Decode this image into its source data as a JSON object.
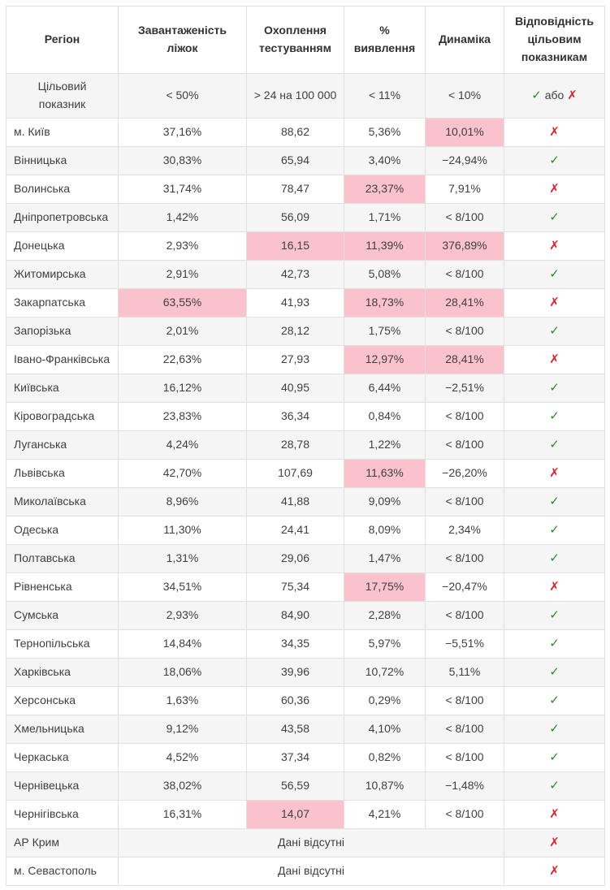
{
  "chart_data": {
    "type": "table",
    "columns": [
      "Регіон",
      "Завантаженість ліжок",
      "Охоплення тестуванням",
      "% виявлення",
      "Динаміка",
      "Відповідність цільовим показникам"
    ],
    "target_row": {
      "label": "Цільовий показник",
      "beds": "< 50%",
      "testing": "> 24 на 100 000",
      "detection": "< 11%",
      "dynamics": "< 10%"
    },
    "no_data_label": "Дані відсутні",
    "rows": [
      {
        "region": "м. Київ",
        "beds": "37,16%",
        "testing": "88,62",
        "detection": "5,36%",
        "dynamics": "10,01%",
        "highlight": [
          "dynamics"
        ],
        "compliance": "fail"
      },
      {
        "region": "Вінницька",
        "beds": "30,83%",
        "testing": "65,94",
        "detection": "3,40%",
        "dynamics": "−24,94%",
        "highlight": [],
        "compliance": "pass"
      },
      {
        "region": "Волинська",
        "beds": "31,74%",
        "testing": "78,47",
        "detection": "23,37%",
        "dynamics": "7,91%",
        "highlight": [
          "detection"
        ],
        "compliance": "fail"
      },
      {
        "region": "Дніпропетровська",
        "beds": "1,42%",
        "testing": "56,09",
        "detection": "1,71%",
        "dynamics": "< 8/100",
        "highlight": [],
        "compliance": "pass"
      },
      {
        "region": "Донецька",
        "beds": "2,93%",
        "testing": "16,15",
        "detection": "11,39%",
        "dynamics": "376,89%",
        "highlight": [
          "testing",
          "detection",
          "dynamics"
        ],
        "compliance": "fail"
      },
      {
        "region": "Житомирська",
        "beds": "2,91%",
        "testing": "42,73",
        "detection": "5,08%",
        "dynamics": "< 8/100",
        "highlight": [],
        "compliance": "pass"
      },
      {
        "region": "Закарпатська",
        "beds": "63,55%",
        "testing": "41,93",
        "detection": "18,73%",
        "dynamics": "28,41%",
        "highlight": [
          "beds",
          "detection",
          "dynamics"
        ],
        "compliance": "fail"
      },
      {
        "region": "Запорізька",
        "beds": "2,01%",
        "testing": "28,12",
        "detection": "1,75%",
        "dynamics": "< 8/100",
        "highlight": [],
        "compliance": "pass"
      },
      {
        "region": "Івано-Франківська",
        "beds": "22,63%",
        "testing": "27,93",
        "detection": "12,97%",
        "dynamics": "28,41%",
        "highlight": [
          "detection",
          "dynamics"
        ],
        "compliance": "fail"
      },
      {
        "region": "Київська",
        "beds": "16,12%",
        "testing": "40,95",
        "detection": "6,44%",
        "dynamics": "−2,51%",
        "highlight": [],
        "compliance": "pass"
      },
      {
        "region": "Кіровоградська",
        "beds": "23,83%",
        "testing": "36,34",
        "detection": "0,84%",
        "dynamics": "< 8/100",
        "highlight": [],
        "compliance": "pass"
      },
      {
        "region": "Луганська",
        "beds": "4,24%",
        "testing": "28,78",
        "detection": "1,22%",
        "dynamics": "< 8/100",
        "highlight": [],
        "compliance": "pass"
      },
      {
        "region": "Львівська",
        "beds": "42,70%",
        "testing": "107,69",
        "detection": "11,63%",
        "dynamics": "−26,20%",
        "highlight": [
          "detection"
        ],
        "compliance": "fail"
      },
      {
        "region": "Миколаївська",
        "beds": "8,96%",
        "testing": "41,88",
        "detection": "9,09%",
        "dynamics": "< 8/100",
        "highlight": [],
        "compliance": "pass"
      },
      {
        "region": "Одеська",
        "beds": "11,30%",
        "testing": "24,41",
        "detection": "8,09%",
        "dynamics": "2,34%",
        "highlight": [],
        "compliance": "pass"
      },
      {
        "region": "Полтавська",
        "beds": "1,31%",
        "testing": "29,06",
        "detection": "1,47%",
        "dynamics": "< 8/100",
        "highlight": [],
        "compliance": "pass"
      },
      {
        "region": "Рівненська",
        "beds": "34,51%",
        "testing": "75,34",
        "detection": "17,75%",
        "dynamics": "−20,47%",
        "highlight": [
          "detection"
        ],
        "compliance": "fail"
      },
      {
        "region": "Сумська",
        "beds": "2,93%",
        "testing": "84,90",
        "detection": "2,28%",
        "dynamics": "< 8/100",
        "highlight": [],
        "compliance": "pass"
      },
      {
        "region": "Тернопільська",
        "beds": "14,84%",
        "testing": "34,35",
        "detection": "5,97%",
        "dynamics": "−5,51%",
        "highlight": [],
        "compliance": "pass"
      },
      {
        "region": "Харківська",
        "beds": "18,06%",
        "testing": "39,96",
        "detection": "10,72%",
        "dynamics": "5,11%",
        "highlight": [],
        "compliance": "pass"
      },
      {
        "region": "Херсонська",
        "beds": "1,63%",
        "testing": "60,36",
        "detection": "0,29%",
        "dynamics": "< 8/100",
        "highlight": [],
        "compliance": "pass"
      },
      {
        "region": "Хмельницька",
        "beds": "9,12%",
        "testing": "43,58",
        "detection": "4,10%",
        "dynamics": "< 8/100",
        "highlight": [],
        "compliance": "pass"
      },
      {
        "region": "Черкаська",
        "beds": "4,52%",
        "testing": "37,34",
        "detection": "0,82%",
        "dynamics": "< 8/100",
        "highlight": [],
        "compliance": "pass"
      },
      {
        "region": "Чернівецька",
        "beds": "38,02%",
        "testing": "56,59",
        "detection": "10,87%",
        "dynamics": "−1,48%",
        "highlight": [],
        "compliance": "pass"
      },
      {
        "region": "Чернігівська",
        "beds": "16,31%",
        "testing": "14,07",
        "detection": "4,21%",
        "dynamics": "< 8/100",
        "highlight": [
          "testing"
        ],
        "compliance": "fail"
      },
      {
        "region": "АР Крим",
        "no_data": true,
        "compliance": "fail"
      },
      {
        "region": "м. Севастополь",
        "no_data": true,
        "compliance": "fail"
      }
    ]
  },
  "icons": {
    "check": "✓",
    "cross": "✗",
    "or_label": "або"
  },
  "colors": {
    "highlight_pink": "#f9c2cd",
    "check_green": "#2e8b2e",
    "cross_red": "#ea1c28",
    "stripe_gray": "#f5f5f5",
    "border_gray": "#e1e1e1"
  }
}
